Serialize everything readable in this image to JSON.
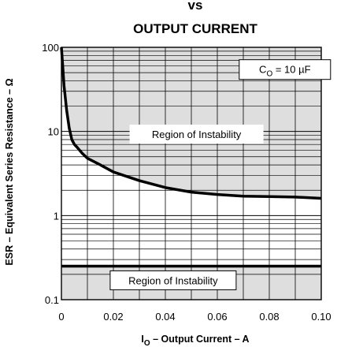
{
  "chart_data": {
    "type": "line",
    "title_lines": [
      "vs",
      "OUTPUT CURRENT"
    ],
    "xlabel": "I",
    "xlabel_sub": "O",
    "xlabel_rest": " – Output Current – A",
    "ylabel": "ESR – Equivalent Series Resistance – Ω",
    "xlim": [
      0,
      0.1
    ],
    "ylim": [
      0.1,
      100
    ],
    "yscale": "log",
    "grid": true,
    "x_ticks": [
      0,
      0.02,
      0.04,
      0.06,
      0.08,
      0.1
    ],
    "x_tick_labels": [
      "0",
      "0.02",
      "0.04",
      "0.06",
      "0.08",
      "0.10"
    ],
    "y_ticks": [
      0.1,
      1,
      10,
      100
    ],
    "y_tick_labels": [
      "0.1",
      "1",
      "10",
      "100"
    ],
    "legend": {
      "prefix": "C",
      "sub": "O",
      "rest": " = 10 µF"
    },
    "regions": [
      {
        "label": "Region of Instability",
        "y_from": 1.6,
        "y_to": 100,
        "kind": "upper"
      },
      {
        "label": "Region of Instability",
        "y_from": 0.1,
        "y_to": 0.25,
        "kind": "lower"
      }
    ],
    "series": [
      {
        "x": [
          0,
          0.0005,
          0.001,
          0.002,
          0.003,
          0.004,
          0.005,
          0.006,
          0.008,
          0.01,
          0.015,
          0.02,
          0.03,
          0.04,
          0.05,
          0.06,
          0.07,
          0.08,
          0.09,
          0.1
        ],
        "y": [
          100,
          60,
          35,
          18,
          11,
          8,
          7,
          6.5,
          5.5,
          4.8,
          4.0,
          3.3,
          2.6,
          2.15,
          1.9,
          1.78,
          1.7,
          1.68,
          1.66,
          1.6
        ]
      }
    ],
    "lower_boundary": 0.25,
    "colors": {
      "region_fill": "#dedede",
      "line": "#000000",
      "grid": "#000000"
    }
  }
}
